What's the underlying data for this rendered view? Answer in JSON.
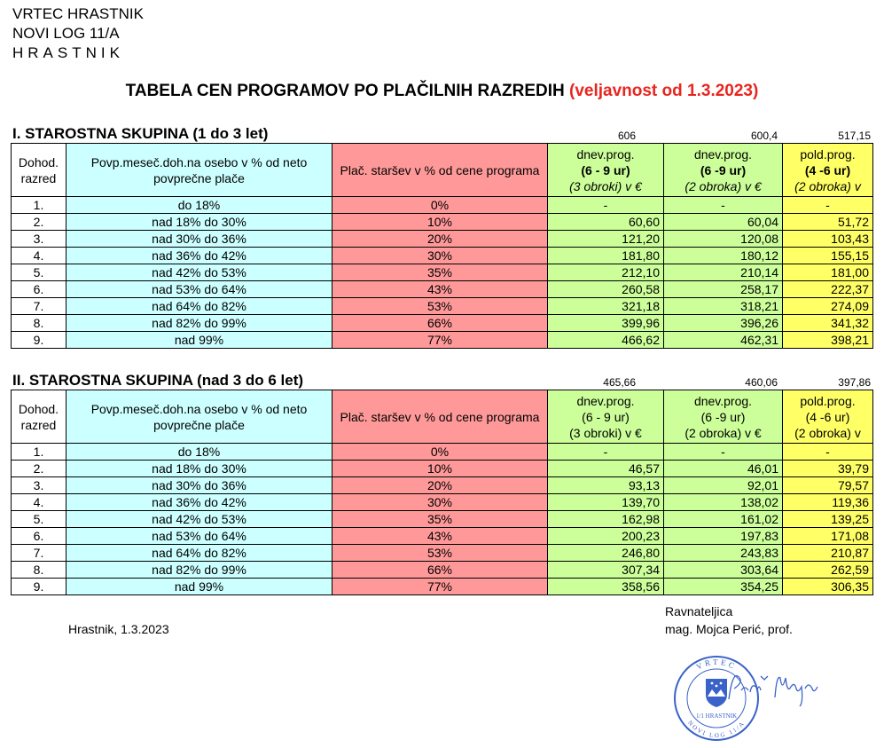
{
  "header": {
    "line1": "VRTEC HRASTNIK",
    "line2": "NOVI LOG 11/A",
    "line3": "HRASTNIK"
  },
  "title": {
    "main": "TABELA CEN PROGRAMOV PO PLAČILNIH RAZREDIH",
    "validity": "(veljavnost od 1.3.2023)"
  },
  "colors": {
    "income": "#ccffff",
    "percent": "#ff9999",
    "green": "#ccff99",
    "yellow": "#ffff66",
    "validity": "#e8261f"
  },
  "group1": {
    "title": "I. STAROSTNA SKUPINA (1 do 3 let)",
    "base_prices": [
      "606",
      "600,4",
      "517,15"
    ],
    "headers": {
      "class": [
        "Dohod.",
        "razred"
      ],
      "income": "Povp.meseč.doh.na osebo v % od neto povprečne plače",
      "percent": "Plač. staršev v % od cene programa",
      "col1": [
        "dnev.prog.",
        "(6 - 9 ur)",
        "(3 obroki)  v €"
      ],
      "col2": [
        "dnev.prog.",
        "(6 -9 ur)",
        "(2 obroka)  v €"
      ],
      "col3": [
        "pold.prog.",
        "(4 -6 ur)",
        "(2 obroka)  v"
      ]
    },
    "rows": [
      {
        "cls": "1.",
        "inc": "do 18%",
        "pct": "0%",
        "a": "-",
        "b": "-",
        "c": "-"
      },
      {
        "cls": "2.",
        "inc": "nad 18% do 30%",
        "pct": "10%",
        "a": "60,60",
        "b": "60,04",
        "c": "51,72"
      },
      {
        "cls": "3.",
        "inc": "nad 30% do 36%",
        "pct": "20%",
        "a": "121,20",
        "b": "120,08",
        "c": "103,43"
      },
      {
        "cls": "4.",
        "inc": "nad 36% do 42%",
        "pct": "30%",
        "a": "181,80",
        "b": "180,12",
        "c": "155,15"
      },
      {
        "cls": "5.",
        "inc": "nad 42% do 53%",
        "pct": "35%",
        "a": "212,10",
        "b": "210,14",
        "c": "181,00"
      },
      {
        "cls": "6.",
        "inc": "nad 53% do 64%",
        "pct": "43%",
        "a": "260,58",
        "b": "258,17",
        "c": "222,37"
      },
      {
        "cls": "7.",
        "inc": "nad 64% do 82%",
        "pct": "53%",
        "a": "321,18",
        "b": "318,21",
        "c": "274,09"
      },
      {
        "cls": "8.",
        "inc": "nad 82% do 99%",
        "pct": "66%",
        "a": "399,96",
        "b": "396,26",
        "c": "341,32"
      },
      {
        "cls": "9.",
        "inc": "nad 99%",
        "pct": "77%",
        "a": "466,62",
        "b": "462,31",
        "c": "398,21"
      }
    ]
  },
  "group2": {
    "title": "II. STAROSTNA SKUPINA (nad 3 do 6 let)",
    "base_prices": [
      "465,66",
      "460,06",
      "397,86"
    ],
    "headers": {
      "class": [
        "Dohod.",
        "razred"
      ],
      "income": "Povp.meseč.doh.na osebo v % od neto povprečne plače",
      "percent": "Plač. staršev v % od cene programa",
      "col1": [
        "dnev.prog.",
        "(6 - 9 ur)",
        "(3 obroki) v €"
      ],
      "col2": [
        "dnev.prog.",
        "(6 -9 ur)",
        "(2 obroka) v €"
      ],
      "col3": [
        "pold.prog.",
        "(4 -6 ur)",
        "(2 obroka) v"
      ]
    },
    "rows": [
      {
        "cls": "1.",
        "inc": "do 18%",
        "pct": "0%",
        "a": "-",
        "b": "-",
        "c": "-"
      },
      {
        "cls": "2.",
        "inc": "nad 18% do 30%",
        "pct": "10%",
        "a": "46,57",
        "b": "46,01",
        "c": "39,79"
      },
      {
        "cls": "3.",
        "inc": "nad 30% do 36%",
        "pct": "20%",
        "a": "93,13",
        "b": "92,01",
        "c": "79,57"
      },
      {
        "cls": "4.",
        "inc": "nad 36% do 42%",
        "pct": "30%",
        "a": "139,70",
        "b": "138,02",
        "c": "119,36"
      },
      {
        "cls": "5.",
        "inc": "nad 42% do 53%",
        "pct": "35%",
        "a": "162,98",
        "b": "161,02",
        "c": "139,25"
      },
      {
        "cls": "6.",
        "inc": "nad 53% do 64%",
        "pct": "43%",
        "a": "200,23",
        "b": "197,83",
        "c": "171,08"
      },
      {
        "cls": "7.",
        "inc": "nad 64% do 82%",
        "pct": "53%",
        "a": "246,80",
        "b": "243,83",
        "c": "210,87"
      },
      {
        "cls": "8.",
        "inc": "nad 82% do 99%",
        "pct": "66%",
        "a": "307,34",
        "b": "303,64",
        "c": "262,59"
      },
      {
        "cls": "9.",
        "inc": "nad 99%",
        "pct": "77%",
        "a": "358,56",
        "b": "354,25",
        "c": "306,35"
      }
    ]
  },
  "footer": {
    "place_date": "Hrastnik, 1.3.2023",
    "role": "Ravnateljica",
    "name": "mag. Mojca Perić, prof."
  },
  "stamp": {
    "top_text": "VRTEC",
    "bottom_text": "NOVI LOG 11/A",
    "center_text": "1/1 HRASTNIK",
    "icon": "coat-of-arms-icon"
  },
  "signature": {
    "text": "Perić Mojca"
  }
}
